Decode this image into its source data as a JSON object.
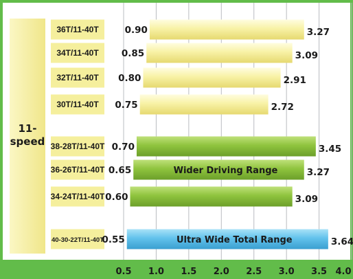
{
  "chart_data": {
    "type": "bar",
    "orientation": "horizontal-floating",
    "group_label": "11-\nspeed",
    "xlim": [
      0.5,
      4.0
    ],
    "x_ticks": [
      "0.5",
      "1.0",
      "1.5",
      "2.0",
      "2.5",
      "3.0",
      "3.5",
      "4.0"
    ],
    "grid": true,
    "bars": [
      {
        "category": "36T/11-40T",
        "low": 0.9,
        "high": 3.27,
        "low_label": "0.90",
        "high_label": "3.27",
        "color": "yellow",
        "annotation": ""
      },
      {
        "category": "34T/11-40T",
        "low": 0.85,
        "high": 3.09,
        "low_label": "0.85",
        "high_label": "3.09",
        "color": "yellow",
        "annotation": ""
      },
      {
        "category": "32T/11-40T",
        "low": 0.8,
        "high": 2.91,
        "low_label": "0.80",
        "high_label": "2.91",
        "color": "yellow",
        "annotation": ""
      },
      {
        "category": "30T/11-40T",
        "low": 0.75,
        "high": 2.72,
        "low_label": "0.75",
        "high_label": "2.72",
        "color": "yellow",
        "annotation": ""
      },
      {
        "category": "38-28T/11-40T",
        "low": 0.7,
        "high": 3.45,
        "low_label": "0.70",
        "high_label": "3.45",
        "color": "green",
        "annotation": ""
      },
      {
        "category": "36-26T/11-40T",
        "low": 0.65,
        "high": 3.27,
        "low_label": "0.65",
        "high_label": "3.27",
        "color": "green",
        "annotation": "Wider Driving Range"
      },
      {
        "category": "34-24T/11-40T",
        "low": 0.6,
        "high": 3.09,
        "low_label": "0.60",
        "high_label": "3.09",
        "color": "green",
        "annotation": ""
      },
      {
        "category": "40-30-22T/11-40T",
        "low": 0.55,
        "high": 3.64,
        "low_label": "0.55",
        "high_label": "3.64",
        "color": "blue",
        "annotation": "Ultra Wide Total Range"
      }
    ],
    "colors": {
      "background": "#62bc4a",
      "plot_background": "#ffffff",
      "grid": "#b9bcc0",
      "yellow": "#f6ef9a",
      "green": "#8dc03a",
      "blue": "#5bc0ea",
      "group_panel": "#f5ef9d",
      "label_box": "#f5ef9d"
    }
  }
}
